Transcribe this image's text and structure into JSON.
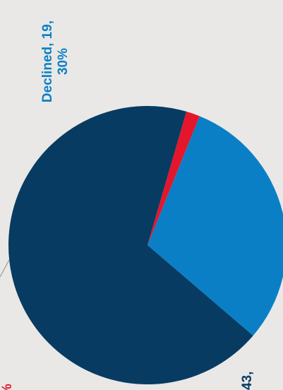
{
  "chart_data": {
    "type": "pie",
    "slices": [
      {
        "name": "Declined",
        "value": 19,
        "percent": "30%",
        "color": "#0a7fc6"
      },
      {
        "name": "",
        "value": 43,
        "percent": "",
        "color": "#073b62"
      },
      {
        "name": "",
        "value": 1,
        "percent": "",
        "color": "#e3162c"
      }
    ],
    "labels": {
      "declined_line1": "Declined, 19,",
      "declined_line2": "30%",
      "bottom_fragment": "43,",
      "left_fragment": "%"
    },
    "background": "#e9e8e6",
    "leader_line_color": "#9a9a9a"
  }
}
